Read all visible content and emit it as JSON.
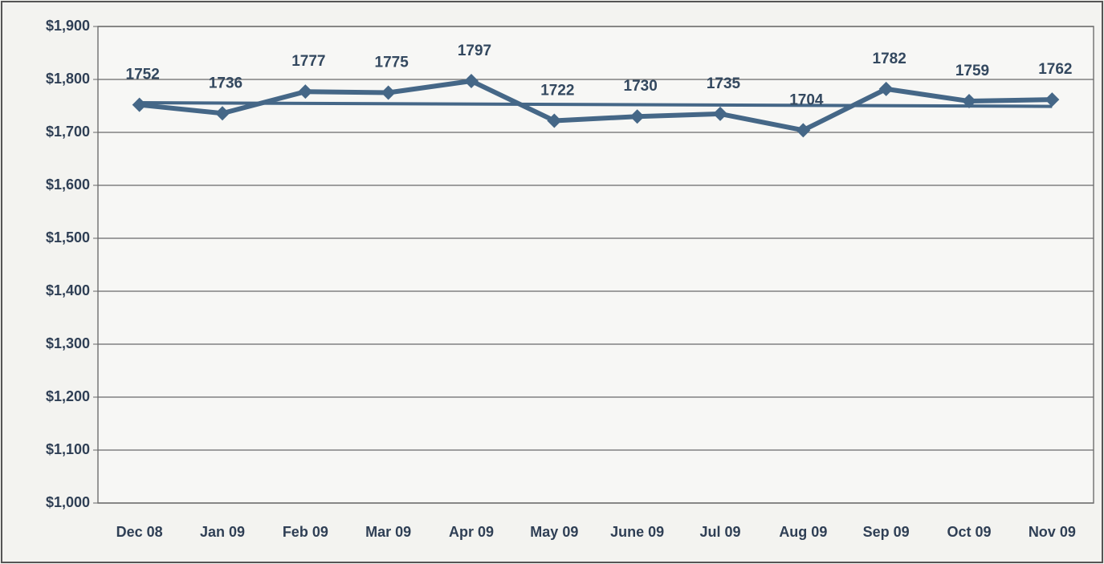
{
  "chart_data": {
    "type": "line",
    "categories": [
      "Dec 08",
      "Jan 09",
      "Feb 09",
      "Mar 09",
      "Apr 09",
      "May 09",
      "June 09",
      "Jul 09",
      "Aug 09",
      "Sep 09",
      "Oct 09",
      "Nov 09"
    ],
    "values": [
      1752,
      1736,
      1777,
      1775,
      1797,
      1722,
      1730,
      1735,
      1704,
      1782,
      1759,
      1762
    ],
    "color": "#456787",
    "ylim": [
      1000,
      1900
    ],
    "yticks": [
      {
        "value": 1000,
        "label": "$1,000"
      },
      {
        "value": 1100,
        "label": "$1,100"
      },
      {
        "value": 1200,
        "label": "$1,200"
      },
      {
        "value": 1300,
        "label": "$1,300"
      },
      {
        "value": 1400,
        "label": "$1,400"
      },
      {
        "value": 1500,
        "label": "$1,500"
      },
      {
        "value": 1600,
        "label": "$1,600"
      },
      {
        "value": 1700,
        "label": "$1,700"
      },
      {
        "value": 1800,
        "label": "$1,800"
      },
      {
        "value": 1900,
        "label": "$1,900"
      }
    ],
    "grid": true,
    "data_labels": true,
    "trendline": "linear"
  }
}
